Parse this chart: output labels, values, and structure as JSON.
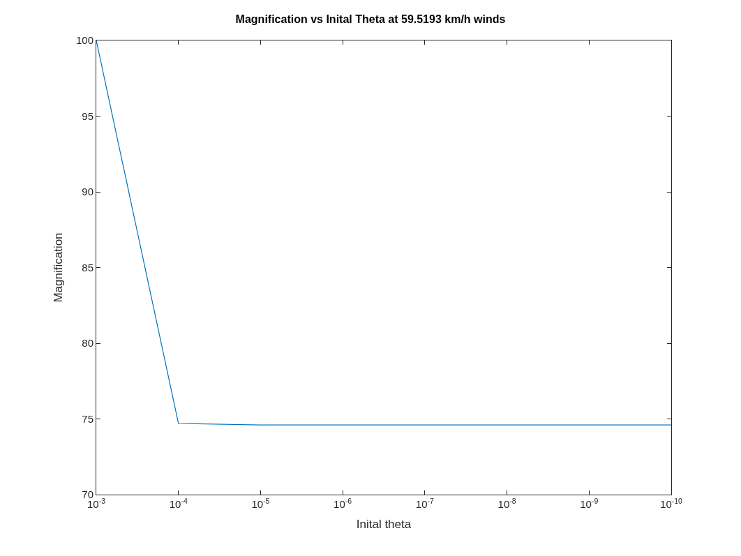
{
  "chart_data": {
    "type": "line",
    "title": "Magnification vs Inital Theta at 59.5193 km/h winds",
    "xlabel": "Inital theta",
    "ylabel": "Magnification",
    "x": [
      0.001,
      0.0001,
      1e-05,
      1e-06,
      1e-07,
      1e-08,
      1e-09,
      1e-10
    ],
    "series": [
      {
        "color": "#0072bd",
        "values": [
          100,
          74.7,
          74.6,
          74.6,
          74.6,
          74.6,
          74.6,
          74.6
        ]
      }
    ],
    "log": "x",
    "xlim": [
      0.001,
      1e-10
    ],
    "xticks": [
      {
        "value": 0.001,
        "label": "10$^{-3}$"
      },
      {
        "value": 0.0001,
        "label": "10$^{-4}$"
      },
      {
        "value": 1e-05,
        "label": "10$^{-5}$"
      },
      {
        "value": 1e-06,
        "label": "10$^{-6}$"
      },
      {
        "value": 1e-07,
        "label": "10$^{-7}$"
      },
      {
        "value": 1e-08,
        "label": "10$^{-8}$"
      },
      {
        "value": 1e-09,
        "label": "10$^{-9}$"
      },
      {
        "value": 1e-10,
        "label": "10$^{-10}$"
      }
    ],
    "ylim": [
      70,
      100
    ],
    "yticks": [
      70,
      75,
      80,
      85,
      90,
      95,
      100
    ],
    "marker": "none",
    "line_style": "solid"
  }
}
